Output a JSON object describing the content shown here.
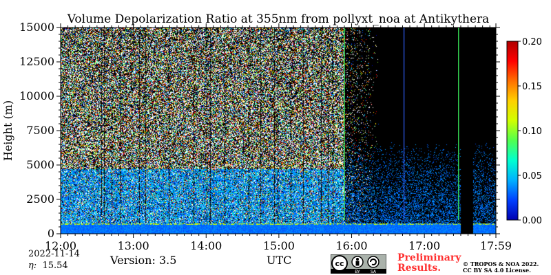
{
  "chart_data": {
    "type": "heatmap",
    "title": "Volume Depolarization Ratio at 355nm from pollyxt_noa at Antikythera",
    "xlabel": "UTC",
    "ylabel": "Height (m)",
    "x_ticks": [
      "12:00",
      "13:00",
      "14:00",
      "15:00",
      "16:00",
      "17:00",
      "17:59"
    ],
    "x_tick_hours": [
      0,
      1,
      2,
      3,
      4,
      5,
      5.983
    ],
    "xlim_hours": [
      0,
      5.983
    ],
    "y_ticks": [
      0,
      2500,
      5000,
      7500,
      10000,
      12500,
      15000
    ],
    "ylim": [
      0,
      15000
    ],
    "colorbar": {
      "range": [
        0,
        0.2
      ],
      "ticks": [
        "0.00",
        "0.05",
        "0.10",
        "0.15",
        "0.20"
      ],
      "tick_values": [
        0,
        0.05,
        0.1,
        0.15,
        0.2
      ],
      "colors": [
        "#0000b0",
        "#0040ff",
        "#00b0ff",
        "#00ffd0",
        "#50ff50",
        "#d0ff00",
        "#ffd000",
        "#ff7000",
        "#ff0000",
        "#b00000"
      ]
    },
    "features": {
      "noise_region_end_hour": 3.9,
      "background_color": "#000000",
      "boundary_layer_top_m": 800,
      "vertical_lines": [
        {
          "hour": 3.9,
          "color": "#40ff60"
        },
        {
          "hour": 4.72,
          "color": "#3060ff"
        },
        {
          "hour": 5.47,
          "color": "#40ff60"
        }
      ],
      "gap": {
        "start_hour": 5.5,
        "end_hour": 5.67
      }
    }
  },
  "footer": {
    "date": "2022-11-14",
    "eta_symbol": "η:",
    "eta_value": "15.54",
    "version": "Version: 3.5",
    "preliminary_line1": "Preliminary",
    "preliminary_line2": "Results.",
    "copyright_line1": "© TROPOS & NOA 2022.",
    "copyright_line2": "CC BY SA 4.0 License.",
    "cc_label": "cc",
    "cc_by": "BY",
    "cc_sa": "SA"
  }
}
